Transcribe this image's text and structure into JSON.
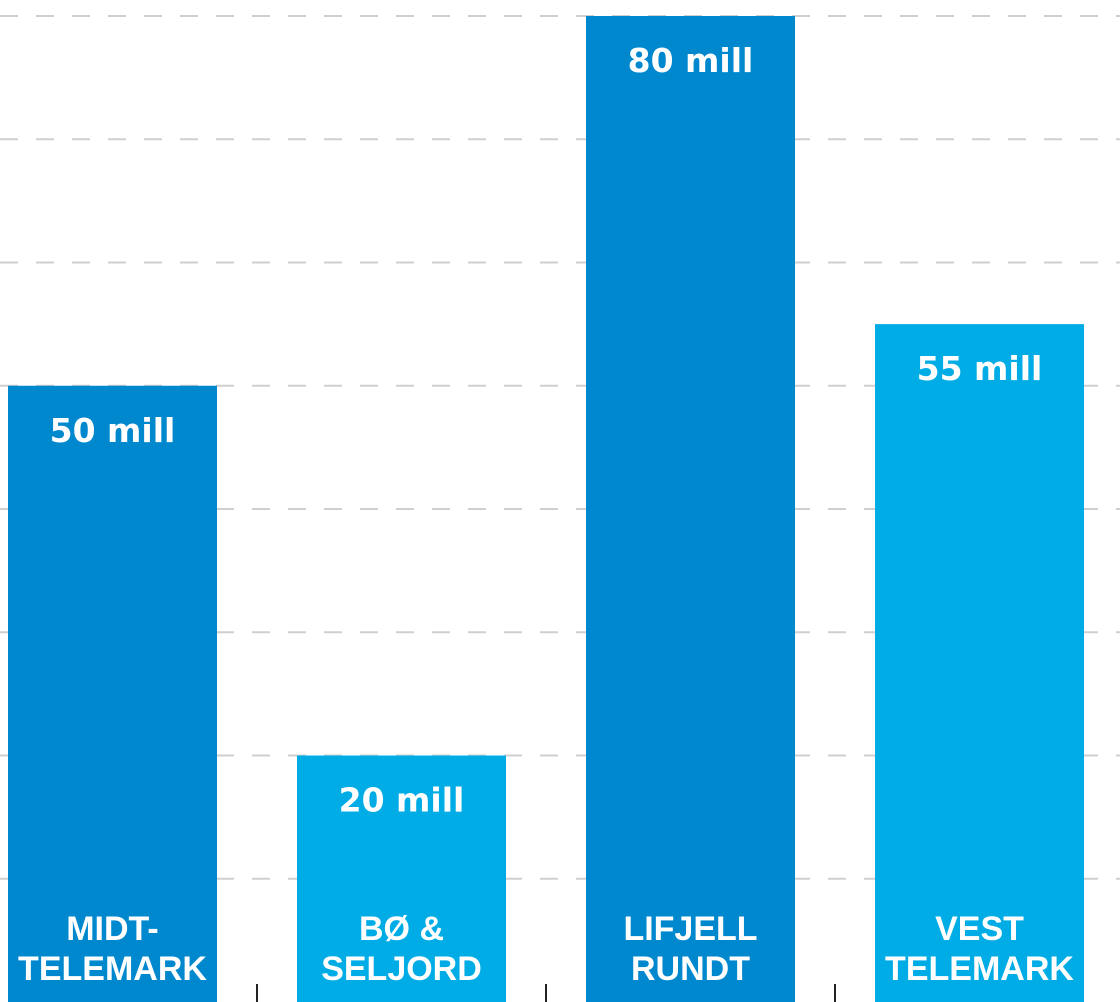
{
  "chart_data": {
    "type": "bar",
    "categories": [
      [
        "MIDT-",
        "TELEMARK"
      ],
      [
        "BØ &",
        "SELJORD"
      ],
      [
        "LIFJELL",
        "RUNDT"
      ],
      [
        "VEST",
        "TELEMARK"
      ]
    ],
    "values": [
      50,
      20,
      80,
      55
    ],
    "value_labels": [
      "50 mill",
      "20 mill",
      "80 mill",
      "55 mill"
    ],
    "ylim": [
      0,
      80
    ],
    "grid": true,
    "colors": [
      "#0088cf",
      "#00ace6",
      "#0088cf",
      "#00ace6"
    ],
    "grid_color": "#cfcfcf",
    "tick_color": "#222222"
  }
}
